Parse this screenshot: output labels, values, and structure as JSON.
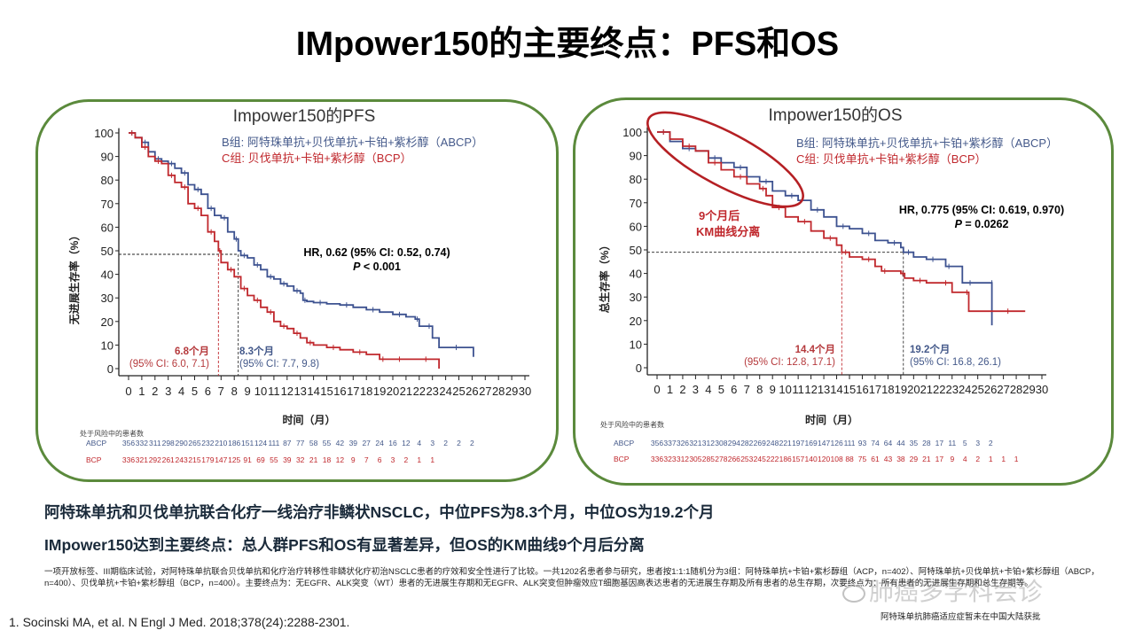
{
  "page": {
    "title": "IMpower150的主要终点：PFS和OS"
  },
  "summary": {
    "line1": "阿特珠单抗和贝伐单抗联合化疗一线治疗非鳞状NSCLC，中位PFS为8.3个月，中位OS为19.2个月",
    "line2": "IMpower150达到主要终点：总人群PFS和OS有显著差异，但OS的KM曲线9个月后分离"
  },
  "footnote": {
    "text": "一项开放标签、III期临床试验，对阿特珠单抗联合贝伐单抗和化疗治疗转移性非鳞状化疗初治NSCLC患者的疗效和安全性进行了比较。一共1202名患者参与研究，患者按1:1:1随机分为3组：阿特珠单抗+卡铂+紫杉醇组（ACP，n=402）、阿特珠单抗+贝伐单抗+卡铂+紫杉醇组（ABCP，n=400）、贝伐单抗+卡铂+紫杉醇组（BCP，n=400）。主要终点为：无EGFR、ALK突变（WT）患者的无进展生存期和无EGFR、ALK突变但肿瘤效应T细胞基因高表达患者的无进展生存期及所有患者的总生存期，次要终点为：所有患者的无进展生存期和总生存期等。",
    "reference": "1. Socinski MA, et al. N Engl J Med. 2018;378(24):2288-2301.",
    "approval_note": "阿特珠单抗肺癌适应症暂未在中国大陆获批",
    "watermark": "肺癌多学科会诊"
  },
  "colors": {
    "abcp": "#3d5290",
    "bcp": "#c0282d",
    "panel_border": "#5b8a3c"
  },
  "chart_data": [
    {
      "type": "line",
      "title": "Impower150的PFS",
      "xlabel": "时间（月）",
      "ylabel": "无进展生存率（%）",
      "xlim": [
        0,
        30
      ],
      "ylim": [
        0,
        100
      ],
      "x_ticks": [
        "0",
        "1",
        "2",
        "3",
        "4",
        "5",
        "6",
        "7",
        "8",
        "9",
        "10",
        "11",
        "12",
        "13",
        "14",
        "15",
        "16",
        "17",
        "18",
        "19",
        "20",
        "21",
        "22",
        "23",
        "24",
        "25",
        "26",
        "27",
        "28",
        "29",
        "30"
      ],
      "y_ticks": [
        "0",
        "10",
        "20",
        "30",
        "40",
        "50",
        "60",
        "70",
        "80",
        "90",
        "100"
      ],
      "legend": [
        {
          "label": "B组: 阿特珠单抗+贝伐单抗+卡铂+紫杉醇（ABCP）",
          "series": "ABCP"
        },
        {
          "label": "C组: 贝伐单抗+卡铂+紫杉醇（BCP）",
          "series": "BCP"
        }
      ],
      "legend_position": "top-right",
      "stats": {
        "hr": "HR, 0.62 (95% CI: 0.52, 0.74)",
        "p_prefix": "P",
        "p_value": " < 0.001"
      },
      "medians": [
        {
          "series": "BCP",
          "value": 6.8,
          "label": "6.8个月",
          "ci": "(95% CI: 6.0, 7.1)"
        },
        {
          "series": "ABCP",
          "value": 8.3,
          "label": "8.3个月",
          "ci": "(95% CI: 7.7, 9.8)"
        }
      ],
      "median_line_y": 48.5,
      "series": [
        {
          "name": "ABCP",
          "x": [
            0,
            0.5,
            1,
            1.5,
            2,
            2.5,
            3,
            3.5,
            4,
            4.5,
            5,
            5.5,
            6,
            6.5,
            7,
            7.5,
            8,
            8.3,
            8.5,
            9,
            9.5,
            10,
            10.5,
            11,
            11.5,
            12,
            12.5,
            13,
            13.2,
            13.5,
            14,
            15,
            16,
            17,
            18,
            19,
            20,
            21,
            21.7,
            22,
            22.5,
            23,
            23.5,
            26.1
          ],
          "y": [
            100,
            98,
            96,
            92,
            89,
            88,
            87,
            85,
            83,
            78,
            76,
            74,
            68,
            65,
            64,
            58,
            55,
            50,
            48,
            47,
            44,
            42,
            39,
            38,
            36,
            35,
            33,
            32,
            29,
            28.5,
            28,
            27.5,
            27,
            26,
            25,
            24,
            23,
            22,
            21,
            18,
            18,
            13,
            9,
            5
          ]
        },
        {
          "name": "BCP",
          "x": [
            0,
            0.5,
            1,
            1.5,
            2,
            2.5,
            3,
            3.5,
            4,
            4.5,
            5,
            5.5,
            6,
            6.5,
            6.8,
            7,
            7.5,
            8,
            8.5,
            9,
            9.5,
            10,
            10.5,
            11,
            11.5,
            12,
            12.5,
            13,
            13.5,
            14,
            15,
            16,
            17,
            18,
            19,
            19.5,
            20,
            21,
            22,
            23,
            23.5
          ],
          "y": [
            100,
            98,
            94,
            90,
            88,
            87,
            82,
            79,
            77,
            70,
            68,
            65,
            58,
            54,
            50,
            45,
            42,
            39,
            34,
            31,
            29,
            26,
            24,
            20,
            18,
            17,
            15,
            13,
            11,
            10,
            9,
            8,
            7,
            6,
            4,
            4,
            4,
            4,
            4,
            4,
            0
          ]
        }
      ],
      "risk_table": {
        "title": "处于风险中的患者数",
        "rows": [
          {
            "label": "ABCP",
            "values": [
              "356",
              "332",
              "311",
              "298",
              "290",
              "265",
              "232",
              "210",
              "186",
              "151",
              "124",
              "111",
              "87",
              "77",
              "58",
              "55",
              "42",
              "39",
              "27",
              "24",
              "16",
              "12",
              "4",
              "3",
              "2",
              "2",
              "2"
            ]
          },
          {
            "label": "BCP",
            "values": [
              "336",
              "321",
              "292",
              "261",
              "243",
              "215",
              "179",
              "147",
              "125",
              "91",
              "69",
              "55",
              "39",
              "32",
              "21",
              "18",
              "12",
              "9",
              "7",
              "6",
              "3",
              "2",
              "1",
              "1"
            ]
          }
        ]
      }
    },
    {
      "type": "line",
      "title": "Impower150的OS",
      "xlabel": "时间（月）",
      "ylabel": "总生存率（%）",
      "xlim": [
        0,
        30
      ],
      "ylim": [
        0,
        100
      ],
      "x_ticks": [
        "0",
        "1",
        "2",
        "3",
        "4",
        "5",
        "6",
        "7",
        "8",
        "9",
        "10",
        "11",
        "12",
        "13",
        "14",
        "15",
        "16",
        "17",
        "18",
        "19",
        "20",
        "21",
        "22",
        "23",
        "24",
        "25",
        "26",
        "27",
        "28",
        "29",
        "30"
      ],
      "y_ticks": [
        "0",
        "10",
        "20",
        "30",
        "40",
        "50",
        "60",
        "70",
        "80",
        "90",
        "100"
      ],
      "legend": [
        {
          "label": "B组: 阿特珠单抗+贝伐单抗+卡铂+紫杉醇（ABCP）",
          "series": "ABCP"
        },
        {
          "label": "C组: 贝伐单抗+卡铂+紫杉醇（BCP）",
          "series": "BCP"
        }
      ],
      "legend_position": "top-right",
      "stats": {
        "hr": "HR, 0.775 (95% CI: 0.619, 0.970)",
        "p_prefix": "P",
        "p_value": " = 0.0262"
      },
      "annotation": {
        "line1": "9个月后",
        "line2": "KM曲线分离"
      },
      "medians": [
        {
          "series": "BCP",
          "value": 14.4,
          "label": "14.4个月",
          "ci": "(95% CI: 12.8, 17.1)"
        },
        {
          "series": "ABCP",
          "value": 19.2,
          "label": "19.2个月",
          "ci": "(95% CI: 16.8, 26.1)"
        }
      ],
      "median_line_y": 49,
      "series": [
        {
          "name": "ABCP",
          "x": [
            0,
            1,
            2,
            3,
            4,
            5,
            6,
            7,
            8,
            9,
            10,
            11,
            12,
            13,
            14,
            15,
            16,
            17,
            18,
            19,
            19.2,
            20,
            21,
            22,
            22.5,
            23,
            23.8,
            25,
            26.1,
            26.1
          ],
          "y": [
            100,
            96,
            93,
            92,
            89,
            87,
            85,
            81,
            79,
            75,
            73,
            71,
            67,
            64,
            60,
            59,
            57,
            54,
            53,
            51,
            49,
            47,
            46,
            46,
            43,
            43,
            36,
            36,
            36,
            18
          ]
        },
        {
          "name": "BCP",
          "x": [
            0,
            1,
            2,
            3,
            4,
            5,
            6,
            7,
            8,
            8.5,
            9,
            10,
            11,
            12,
            13,
            14,
            14.4,
            15,
            16,
            17,
            17.5,
            18,
            19,
            19.3,
            20,
            21,
            22,
            23,
            24,
            24.3,
            26,
            28.7
          ],
          "y": [
            100,
            97,
            94,
            92,
            87,
            84,
            81,
            78,
            76,
            73,
            68,
            64,
            62,
            58,
            55,
            52,
            49,
            47,
            46,
            43,
            41,
            41,
            40,
            38,
            37,
            36,
            36,
            32,
            32,
            24,
            24,
            24
          ]
        }
      ],
      "risk_table": {
        "title": "处于风险中的患者数",
        "rows": [
          {
            "label": "ABCP",
            "values": [
              "356",
              "337",
              "326",
              "321",
              "312",
              "308",
              "294",
              "282",
              "269",
              "248",
              "221",
              "197",
              "169",
              "147",
              "126",
              "111",
              "93",
              "74",
              "64",
              "44",
              "35",
              "28",
              "17",
              "11",
              "5",
              "3",
              "2"
            ]
          },
          {
            "label": "BCP",
            "values": [
              "336",
              "323",
              "312",
              "305",
              "285",
              "278",
              "266",
              "253",
              "245",
              "222",
              "186",
              "157",
              "140",
              "120",
              "108",
              "88",
              "75",
              "61",
              "43",
              "38",
              "29",
              "21",
              "17",
              "9",
              "4",
              "2",
              "1",
              "1",
              "1"
            ]
          }
        ]
      }
    }
  ]
}
